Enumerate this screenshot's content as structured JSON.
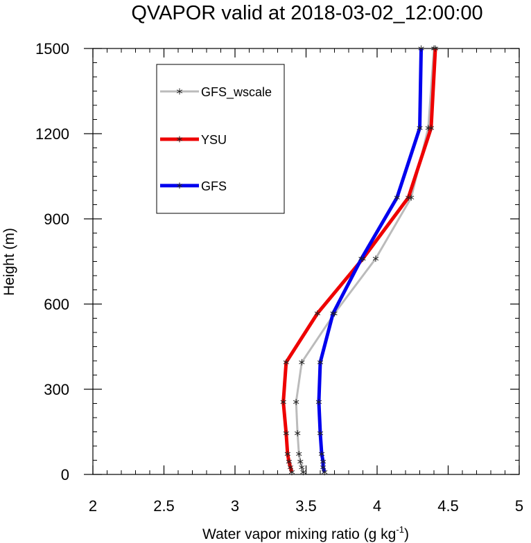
{
  "chart_data": {
    "type": "line",
    "title": "QVAPOR valid at 2018-03-02_12:00:00",
    "xlabel": "Water vapor mixing ratio (g kg",
    "xlabel_sup": "-1",
    "xlabel_end": ")",
    "ylabel": "Height (m)",
    "xlim": [
      2,
      5
    ],
    "ylim": [
      0,
      1500
    ],
    "xticks": [
      2,
      2.5,
      3,
      3.5,
      4,
      4.5,
      5
    ],
    "xtick_labels": [
      "2",
      "2.5",
      "3",
      "3.5",
      "4",
      "4.5",
      "5"
    ],
    "yticks": [
      0,
      300,
      600,
      900,
      1200,
      1500
    ],
    "ytick_labels": [
      "0",
      "300",
      "600",
      "900",
      "1200",
      "1500"
    ],
    "legend_position": "top-left",
    "series": [
      {
        "name": "GFS_wscale",
        "color": "#bbbbbb",
        "width": 3,
        "x": [
          3.48,
          3.47,
          3.46,
          3.45,
          3.44,
          3.43,
          3.47,
          3.7,
          3.99,
          4.24,
          4.36,
          4.4
        ],
        "y": [
          8,
          25,
          45,
          72,
          145,
          255,
          395,
          567,
          760,
          975,
          1220,
          1500
        ]
      },
      {
        "name": "YSU",
        "color": "#ee0000",
        "width": 5,
        "x": [
          3.4,
          3.39,
          3.38,
          3.37,
          3.36,
          3.34,
          3.36,
          3.58,
          3.9,
          4.22,
          4.38,
          4.41
        ],
        "y": [
          8,
          25,
          45,
          72,
          145,
          255,
          395,
          567,
          760,
          975,
          1220,
          1500
        ]
      },
      {
        "name": "GFS",
        "color": "#0000ee",
        "width": 5,
        "x": [
          3.63,
          3.62,
          3.62,
          3.61,
          3.6,
          3.59,
          3.6,
          3.69,
          3.89,
          4.14,
          4.3,
          4.31
        ],
        "y": [
          8,
          25,
          45,
          72,
          145,
          255,
          395,
          567,
          760,
          975,
          1220,
          1500
        ]
      }
    ]
  }
}
